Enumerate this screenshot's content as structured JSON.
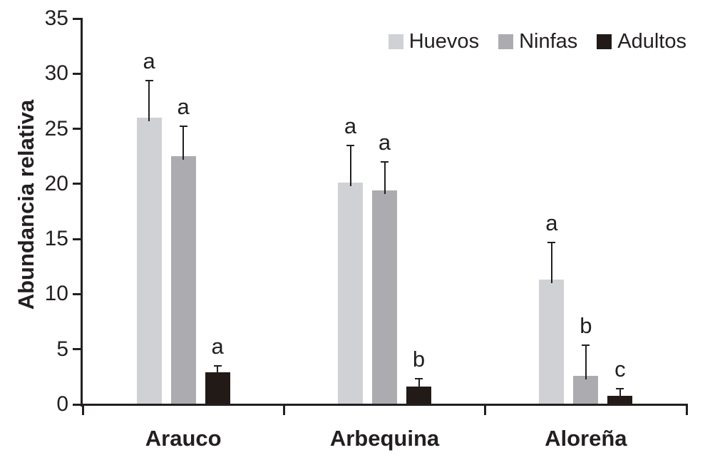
{
  "chart_data": {
    "type": "bar",
    "title": "",
    "xlabel": "",
    "ylabel": "Abundancia relativa",
    "ylim": [
      0,
      35
    ],
    "yticks": [
      0,
      5,
      10,
      15,
      20,
      25,
      30,
      35
    ],
    "grid": false,
    "legend_position": "top-right",
    "error_bars": "upper",
    "categories": [
      "Arauco",
      "Arbequina",
      "Aloreña"
    ],
    "series": [
      {
        "name": "Huevos",
        "color": "#d0d1d5",
        "values": [
          26.0,
          20.1,
          11.3
        ],
        "errors": [
          3.4,
          3.4,
          3.4
        ],
        "sig_letters": [
          "a",
          "a",
          "a"
        ]
      },
      {
        "name": "Ninfas",
        "color": "#acacb0",
        "values": [
          22.5,
          19.4,
          2.6
        ],
        "errors": [
          2.7,
          2.6,
          2.8
        ],
        "sig_letters": [
          "a",
          "a",
          "b"
        ]
      },
      {
        "name": "Adultos",
        "color": "#211a16",
        "values": [
          2.9,
          1.6,
          0.8
        ],
        "errors": [
          0.6,
          0.7,
          0.6
        ],
        "sig_letters": [
          "a",
          "b",
          "c"
        ]
      }
    ]
  },
  "colors": {
    "text": "#231f20",
    "axis": "#231f20",
    "background": "#ffffff"
  }
}
